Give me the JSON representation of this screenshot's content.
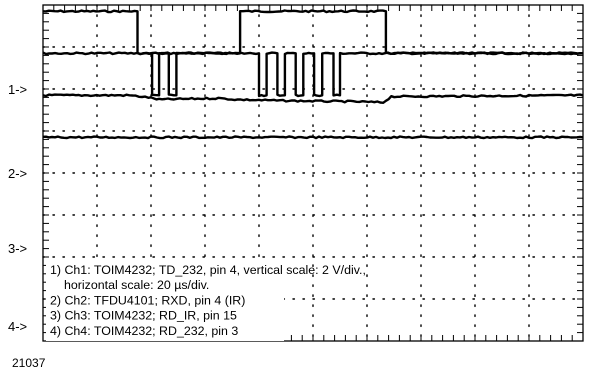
{
  "figure_id": "21037",
  "chart_data": {
    "type": "line",
    "title": "",
    "xlabel": "",
    "ylabel": "",
    "grid": true,
    "x_unit": "div",
    "xlim": [
      0,
      10
    ],
    "ylim": [
      0,
      8
    ],
    "channel_markers": [
      "1->",
      "2->",
      "3->",
      "4->"
    ],
    "legend": [
      "1) Ch1: TOIM4232; TD_232, pin 4, vertical scale: 2 V/div.,",
      "horizontal scale: 20 µs/div.",
      "2) Ch2: TFDU4101; RXD, pin 4 (IR)",
      "3) Ch3: TOIM4232; RD_IR, pin 15",
      "4) Ch4: TOIM4232; RD_232, pin 3"
    ],
    "legend_position": "bottom-left",
    "series": [
      {
        "name": "Ch1",
        "x": [
          0,
          1.75,
          1.75,
          3.65,
          3.65,
          6.35,
          6.35,
          10
        ],
        "y": [
          7.85,
          7.85,
          6.85,
          6.85,
          7.85,
          7.85,
          6.85,
          6.85
        ]
      },
      {
        "name": "Ch2",
        "x": [
          0,
          2.02,
          2.02,
          2.15,
          2.15,
          2.33,
          2.33,
          2.47,
          2.47,
          4.0,
          4.0,
          4.14,
          4.14,
          4.34,
          4.34,
          4.48,
          4.48,
          4.68,
          4.68,
          4.82,
          4.82,
          5.02,
          5.02,
          5.17,
          5.17,
          5.38,
          5.38,
          5.5,
          5.5,
          10
        ],
        "y": [
          6.85,
          6.85,
          5.85,
          5.85,
          6.85,
          6.85,
          5.85,
          5.85,
          6.85,
          6.85,
          5.85,
          5.85,
          6.85,
          6.85,
          5.85,
          5.85,
          6.85,
          6.85,
          5.85,
          5.85,
          6.85,
          6.85,
          5.85,
          5.85,
          6.85,
          6.85,
          5.85,
          5.85,
          6.85,
          6.85
        ]
      },
      {
        "name": "Ch3",
        "x": [
          0,
          1.6,
          1.95,
          2.15,
          3.25,
          3.55,
          4.5,
          5.75,
          6.3,
          6.45,
          10
        ],
        "y": [
          5.85,
          5.85,
          5.8,
          5.75,
          5.78,
          5.75,
          5.72,
          5.7,
          5.68,
          5.82,
          5.85
        ]
      },
      {
        "name": "Ch4",
        "x": [
          0,
          10
        ],
        "y": [
          4.85,
          4.85
        ]
      }
    ]
  }
}
